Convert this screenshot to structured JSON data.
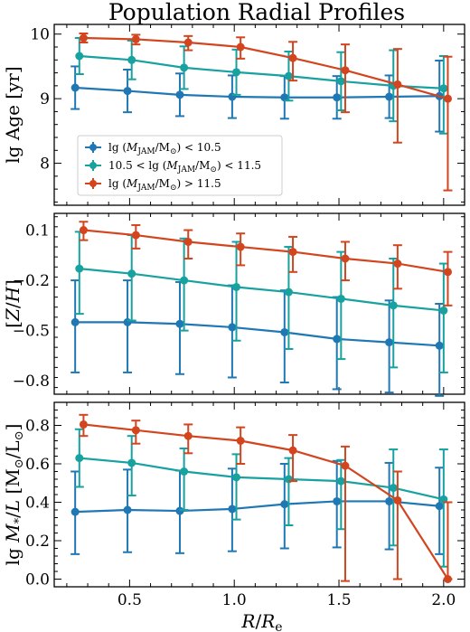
{
  "title": "Population Radial Profiles",
  "xlabel": "R/R_e",
  "colors": {
    "low": "#1f77b4",
    "mid": "#17a2a0",
    "high": "#d2451e"
  },
  "legend": {
    "placement": "lower-left of top panel",
    "entries": [
      "lg (M_JAM/M_⊙) < 10.5",
      "10.5 < lg (M_JAM/M_⊙) < 11.5",
      "lg (M_JAM/M_⊙) > 11.5"
    ]
  },
  "chart_data": [
    {
      "type": "line",
      "title": "Population Radial Profiles",
      "ylabel": "lg Age [yr]",
      "xlim": [
        0.14,
        2.1
      ],
      "ylim": [
        7.35,
        10.15
      ],
      "yticks": [
        8,
        9,
        10
      ],
      "ytick_labels": [
        "8",
        "9",
        "10"
      ],
      "series": [
        {
          "name": "lg (M_JAM/M_⊙) < 10.5",
          "color": "#1f77b4",
          "x": [
            0.24,
            0.49,
            0.74,
            0.99,
            1.24,
            1.49,
            1.74,
            1.98
          ],
          "y": [
            9.17,
            9.12,
            9.06,
            9.03,
            9.02,
            9.02,
            9.03,
            9.04
          ],
          "err_low": [
            0.33,
            0.33,
            0.33,
            0.33,
            0.33,
            0.33,
            0.33,
            0.55
          ],
          "err_high": [
            0.33,
            0.33,
            0.33,
            0.33,
            0.33,
            0.33,
            0.33,
            0.55
          ]
        },
        {
          "name": "10.5 < lg (M_JAM/M_⊙) < 11.5",
          "color": "#17a2a0",
          "x": [
            0.26,
            0.51,
            0.76,
            1.01,
            1.26,
            1.51,
            1.76,
            2.0
          ],
          "y": [
            9.66,
            9.6,
            9.48,
            9.41,
            9.35,
            9.27,
            9.2,
            9.16
          ],
          "err_low": [
            0.28,
            0.3,
            0.33,
            0.35,
            0.38,
            0.45,
            0.55,
            0.7
          ],
          "err_high": [
            0.28,
            0.3,
            0.33,
            0.35,
            0.38,
            0.45,
            0.55,
            0.5
          ]
        },
        {
          "name": "lg (M_JAM/M_⊙) > 11.5",
          "color": "#d2451e",
          "x": [
            0.28,
            0.53,
            0.78,
            1.03,
            1.28,
            1.53,
            1.78,
            2.02
          ],
          "y": [
            9.94,
            9.92,
            9.87,
            9.8,
            9.63,
            9.44,
            9.22,
            9.0
          ],
          "err_low": [
            0.07,
            0.08,
            0.12,
            0.18,
            0.35,
            0.65,
            0.9,
            1.42
          ],
          "err_high": [
            0.07,
            0.07,
            0.1,
            0.15,
            0.25,
            0.4,
            0.55,
            0.65
          ]
        }
      ]
    },
    {
      "type": "line",
      "ylabel": "[Z/H]",
      "xlim": [
        0.14,
        2.1
      ],
      "ylim": [
        -0.88,
        0.2
      ],
      "yticks": [
        0.1,
        -0.2,
        -0.5,
        -0.8
      ],
      "ytick_labels": [
        "0.1",
        "−0.2",
        "−0.5",
        "−0.8"
      ],
      "series": [
        {
          "name": "lg (M_JAM/M_⊙) < 10.5",
          "color": "#1f77b4",
          "x": [
            0.24,
            0.49,
            0.74,
            0.99,
            1.24,
            1.49,
            1.74,
            1.98
          ],
          "y": [
            -0.45,
            -0.45,
            -0.46,
            -0.48,
            -0.51,
            -0.55,
            -0.57,
            -0.59
          ],
          "err_low": [
            0.3,
            0.3,
            0.3,
            0.3,
            0.3,
            0.3,
            0.3,
            0.3
          ],
          "err_high": [
            0.25,
            0.25,
            0.25,
            0.25,
            0.25,
            0.25,
            0.25,
            0.25
          ]
        },
        {
          "name": "10.5 < lg (M_JAM/M_⊙) < 11.5",
          "color": "#17a2a0",
          "x": [
            0.26,
            0.51,
            0.76,
            1.01,
            1.26,
            1.51,
            1.76,
            2.0
          ],
          "y": [
            -0.13,
            -0.16,
            -0.2,
            -0.24,
            -0.27,
            -0.31,
            -0.35,
            -0.38
          ],
          "err_low": [
            0.27,
            0.28,
            0.3,
            0.32,
            0.34,
            0.36,
            0.37,
            0.37
          ],
          "err_high": [
            0.22,
            0.23,
            0.25,
            0.27,
            0.27,
            0.28,
            0.28,
            0.28
          ]
        },
        {
          "name": "lg (M_JAM/M_⊙) > 11.5",
          "color": "#d2451e",
          "x": [
            0.28,
            0.53,
            0.78,
            1.03,
            1.28,
            1.53,
            1.78,
            2.02
          ],
          "y": [
            0.1,
            0.07,
            0.03,
            0.0,
            -0.03,
            -0.07,
            -0.1,
            -0.15
          ],
          "err_low": [
            0.06,
            0.08,
            0.1,
            0.11,
            0.12,
            0.13,
            0.15,
            0.2
          ],
          "err_high": [
            0.05,
            0.06,
            0.07,
            0.08,
            0.09,
            0.1,
            0.11,
            0.12
          ]
        }
      ]
    },
    {
      "type": "line",
      "ylabel": "lg M_*/L [M_⊙/L_⊙]",
      "xlabel": "R/R_e",
      "xlim": [
        0.14,
        2.1
      ],
      "ylim": [
        -0.04,
        0.92
      ],
      "yticks": [
        0.0,
        0.2,
        0.4,
        0.6,
        0.8
      ],
      "ytick_labels": [
        "0.0",
        "0.2",
        "0.4",
        "0.6",
        "0.8"
      ],
      "xticks": [
        0.5,
        1.0,
        1.5,
        2.0
      ],
      "xtick_labels": [
        "0.5",
        "1.0",
        "1.5",
        "2.0"
      ],
      "series": [
        {
          "name": "lg (M_JAM/M_⊙) < 10.5",
          "color": "#1f77b4",
          "x": [
            0.24,
            0.49,
            0.74,
            0.99,
            1.24,
            1.49,
            1.74,
            1.98
          ],
          "y": [
            0.35,
            0.36,
            0.355,
            0.365,
            0.39,
            0.405,
            0.405,
            0.38
          ],
          "err_low": [
            0.22,
            0.22,
            0.22,
            0.22,
            0.23,
            0.24,
            0.25,
            0.25
          ],
          "err_high": [
            0.21,
            0.21,
            0.21,
            0.21,
            0.21,
            0.21,
            0.2,
            0.2
          ]
        },
        {
          "name": "10.5 < lg (M_JAM/M_⊙) < 11.5",
          "color": "#17a2a0",
          "x": [
            0.26,
            0.51,
            0.76,
            1.01,
            1.26,
            1.51,
            1.76,
            2.0
          ],
          "y": [
            0.63,
            0.605,
            0.56,
            0.53,
            0.52,
            0.51,
            0.475,
            0.415
          ],
          "err_low": [
            0.15,
            0.17,
            0.2,
            0.22,
            0.24,
            0.25,
            0.3,
            0.35
          ],
          "err_high": [
            0.15,
            0.14,
            0.12,
            0.12,
            0.11,
            0.11,
            0.2,
            0.26
          ]
        },
        {
          "name": "lg (M_JAM/M_⊙) > 11.5",
          "color": "#d2451e",
          "x": [
            0.28,
            0.53,
            0.78,
            1.03,
            1.28,
            1.53,
            1.78,
            2.02
          ],
          "y": [
            0.805,
            0.775,
            0.745,
            0.72,
            0.67,
            0.59,
            0.41,
            0.0
          ],
          "err_low": [
            0.06,
            0.07,
            0.09,
            0.12,
            0.16,
            0.6,
            0.41,
            0.0
          ],
          "err_high": [
            0.05,
            0.05,
            0.06,
            0.07,
            0.08,
            0.1,
            0.15,
            0.4
          ]
        }
      ]
    }
  ]
}
